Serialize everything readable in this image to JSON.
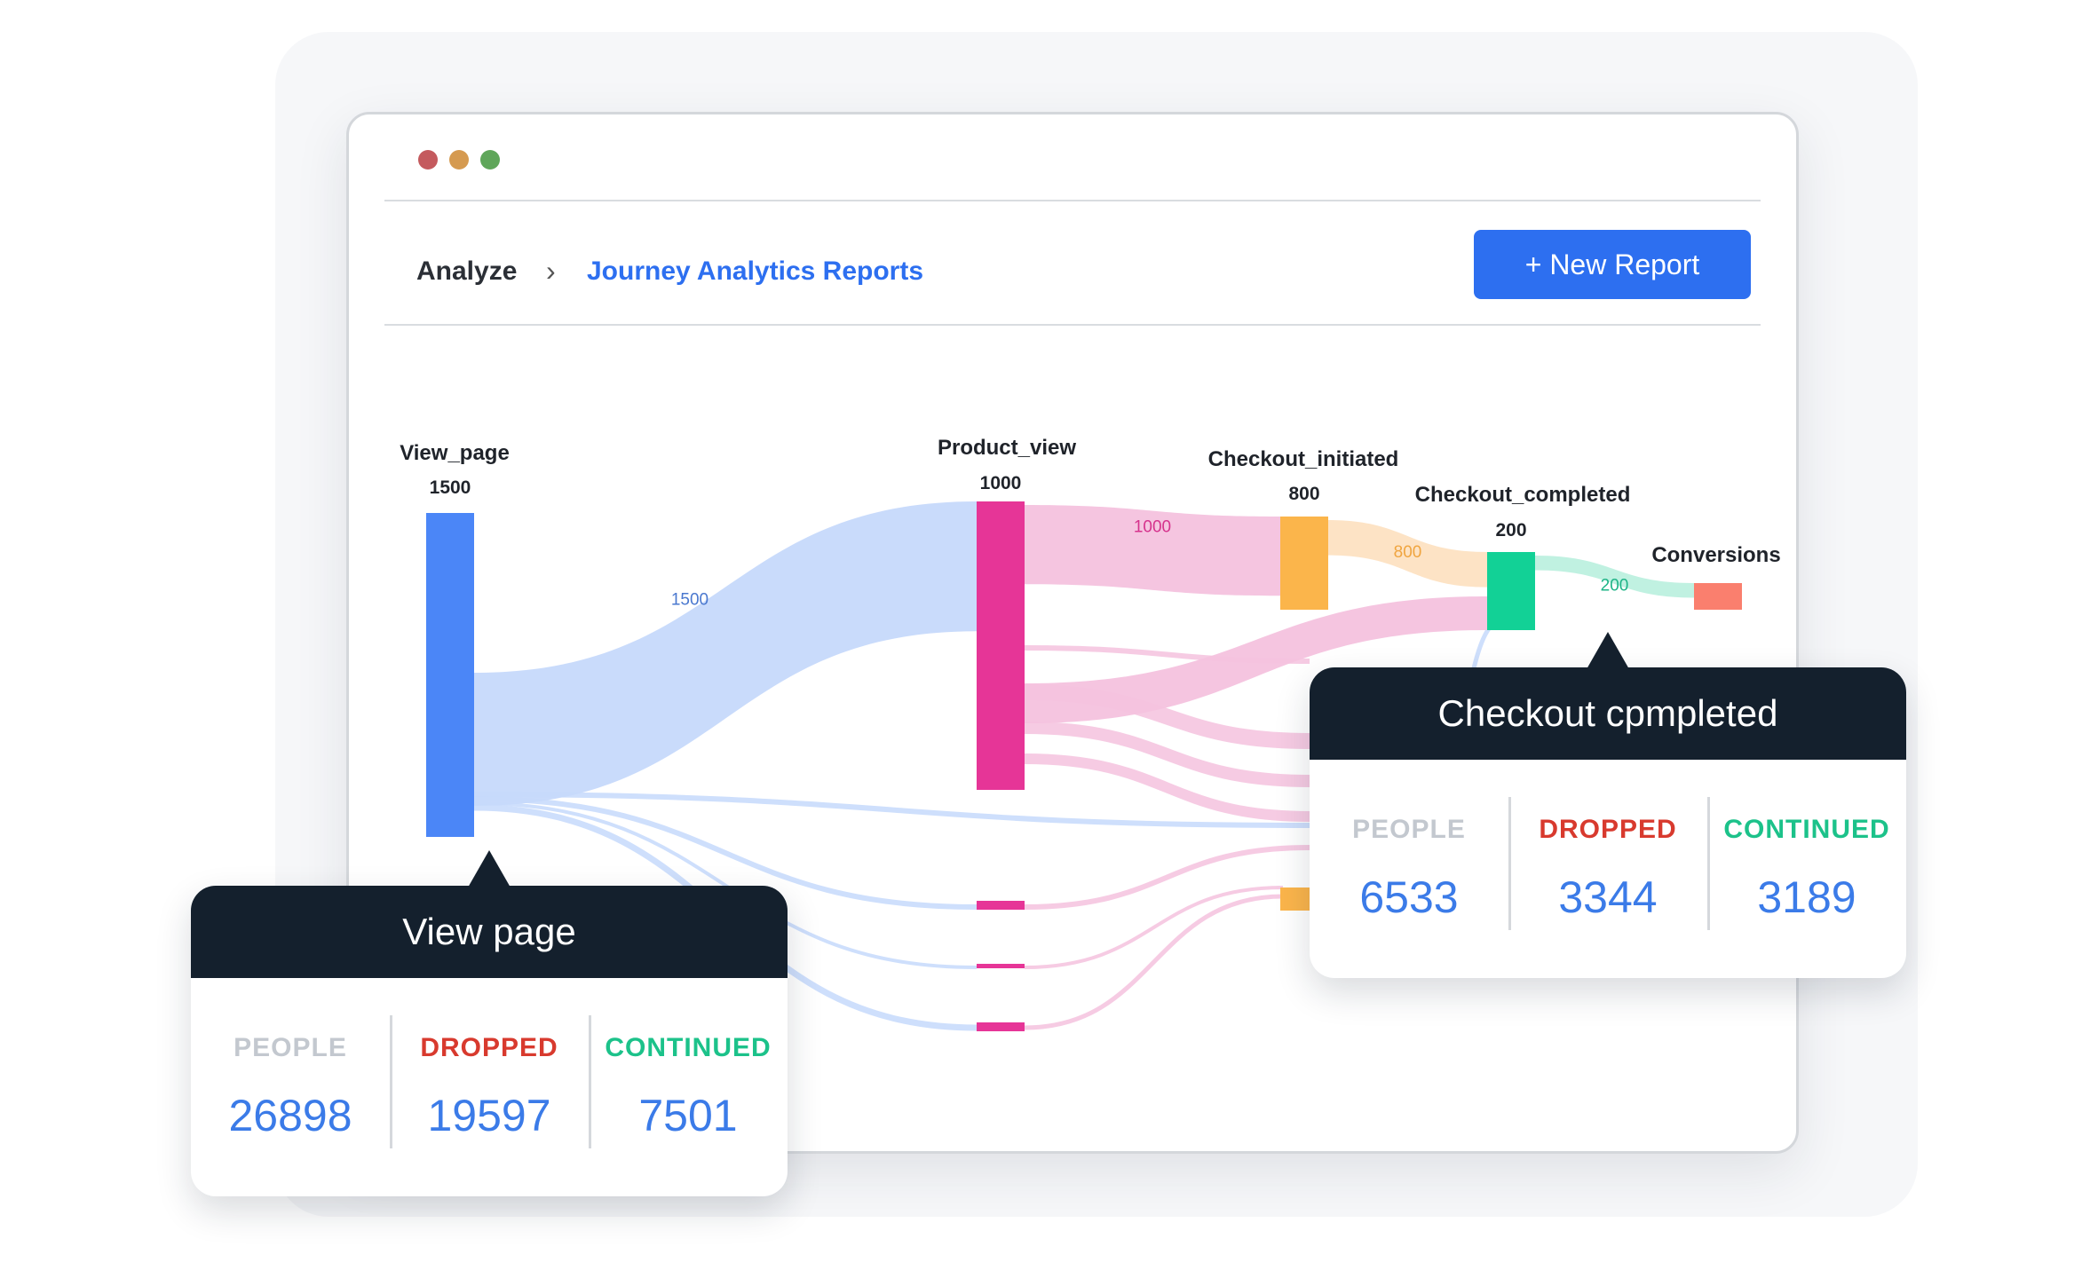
{
  "window_controls": [
    {
      "name": "close",
      "color": "#c45a5e"
    },
    {
      "name": "minimize",
      "color": "#d59a50"
    },
    {
      "name": "maximize",
      "color": "#5fa65a"
    }
  ],
  "breadcrumb": {
    "root": "Analyze",
    "separator_icon": "chevron-right-icon",
    "current": "Journey Analytics Reports",
    "current_color": "#2d6ff0"
  },
  "toolbar": {
    "new_report_label": "+ New Report",
    "new_report_color": "#2d6ff0"
  },
  "chart_data": {
    "type": "sankey",
    "nodes": [
      {
        "id": "view_page",
        "label": "View_page",
        "value": "1500",
        "color": "#4b86f7"
      },
      {
        "id": "product_view",
        "label": "Product_view",
        "value": "1000",
        "color": "#e63597"
      },
      {
        "id": "checkout_initiated",
        "label": "Checkout_initiated",
        "value": "800",
        "color": "#fbb54b"
      },
      {
        "id": "checkout_completed",
        "label": "Checkout_completed",
        "value": "200",
        "color": "#12d196"
      },
      {
        "id": "conversions",
        "label": "Conversions",
        "value": "",
        "color": "#fa7f6e"
      }
    ],
    "links": [
      {
        "source": "view_page",
        "target": "product_view",
        "value": 1500,
        "label": "1500",
        "color": "#c6d9fb",
        "label_color": "#4a78cf"
      },
      {
        "source": "product_view",
        "target": "checkout_initiated",
        "value": 1000,
        "label": "1000",
        "color": "#f4c2de",
        "label_color": "#d6338d"
      },
      {
        "source": "checkout_initiated",
        "target": "checkout_completed",
        "value": 800,
        "label": "800",
        "color": "#fde2c2",
        "label_color": "#f0a540"
      },
      {
        "source": "checkout_completed",
        "target": "conversions",
        "value": 200,
        "label": "200",
        "color": "#bdf0df",
        "label_color": "#1fb487"
      }
    ]
  },
  "tooltips": {
    "view_page": {
      "title": "View page",
      "people_label": "PEOPLE",
      "people": "26898",
      "dropped_label": "DROPPED",
      "dropped": "19597",
      "continued_label": "CONTINUED",
      "continued": "7501"
    },
    "checkout_completed": {
      "title": "Checkout cpmpleted",
      "people_label": "PEOPLE",
      "people": "6533",
      "dropped_label": "DROPPED",
      "dropped": "3344",
      "continued_label": "CONTINUED",
      "continued": "3189"
    }
  },
  "colors": {
    "people": "#c3c8cf",
    "dropped": "#d83a2e",
    "continued": "#1cc28a",
    "value": "#3b7be8"
  }
}
